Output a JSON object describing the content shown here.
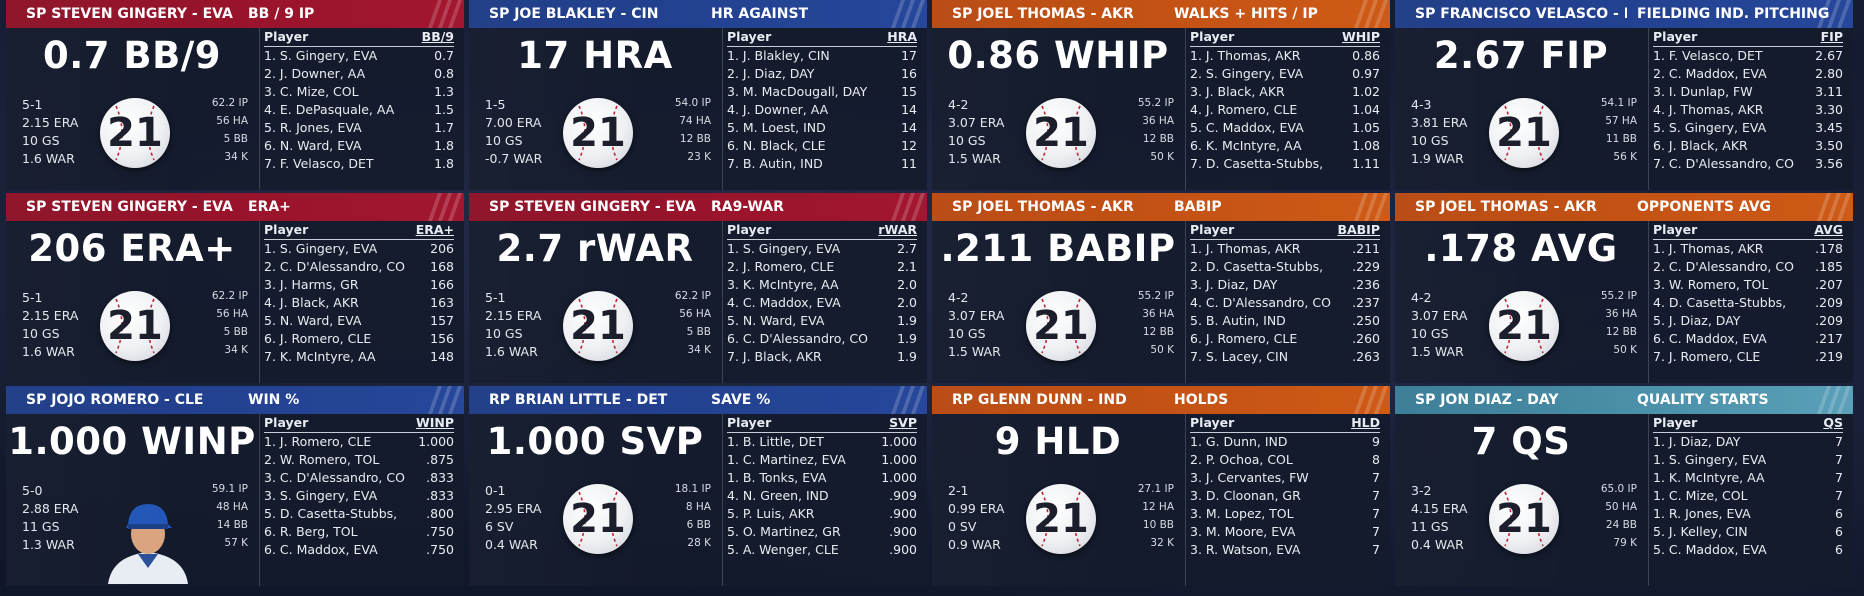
{
  "colors": {
    "red": "#a3162f",
    "blue": "#26479b",
    "orange": "#cf5a17",
    "teal": "#5aa0b9"
  },
  "team_logo_icon": "baseball-21-logo",
  "cards": [
    {
      "color": "red",
      "pname": "SP STEVEN GINGERY - EVA",
      "stitle": "BB / 9 IP",
      "big": "0.7 BB/9",
      "left": [
        "5-1",
        "2.15 ERA",
        "10 GS",
        "1.6 WAR"
      ],
      "right": [
        "62.2 IP",
        "56 HA",
        "5 BB",
        "34 K"
      ],
      "col": "BB/9",
      "rows": [
        [
          "1. S. Gingery, EVA",
          "0.7"
        ],
        [
          "2. J. Downer, AA",
          "0.8"
        ],
        [
          "3. C. Mize, COL",
          "1.3"
        ],
        [
          "4. E. DePasquale, AA",
          "1.5"
        ],
        [
          "5. R. Jones, EVA",
          "1.7"
        ],
        [
          "6. N. Ward, EVA",
          "1.8"
        ],
        [
          "7. F. Velasco, DET",
          "1.8"
        ]
      ]
    },
    {
      "color": "blue",
      "pname": "SP JOE BLAKLEY - CIN",
      "stitle": "HR AGAINST",
      "big": "17 HRA",
      "left": [
        "1-5",
        "7.00 ERA",
        "10 GS",
        "-0.7 WAR"
      ],
      "right": [
        "54.0 IP",
        "74 HA",
        "12 BB",
        "23 K"
      ],
      "col": "HRA",
      "rows": [
        [
          "1. J. Blakley, CIN",
          "17"
        ],
        [
          "2. J. Diaz, DAY",
          "16"
        ],
        [
          "3. M. MacDougall, DAY",
          "15"
        ],
        [
          "4. J. Downer, AA",
          "14"
        ],
        [
          "5. M. Loest, IND",
          "14"
        ],
        [
          "6. N. Black, CLE",
          "12"
        ],
        [
          "7. B. Autin, IND",
          "11"
        ]
      ]
    },
    {
      "color": "orange",
      "pname": "SP JOEL THOMAS - AKR",
      "stitle": "WALKS + HITS / IP",
      "big": "0.86 WHIP",
      "left": [
        "4-2",
        "3.07 ERA",
        "10 GS",
        "1.5 WAR"
      ],
      "right": [
        "55.2 IP",
        "36 HA",
        "12 BB",
        "50 K"
      ],
      "col": "WHIP",
      "rows": [
        [
          "1. J. Thomas, AKR",
          "0.86"
        ],
        [
          "2. S. Gingery, EVA",
          "0.97"
        ],
        [
          "3. J. Black, AKR",
          "1.02"
        ],
        [
          "4. J. Romero, CLE",
          "1.04"
        ],
        [
          "5. C. Maddox, EVA",
          "1.05"
        ],
        [
          "6. K. McIntyre, AA",
          "1.08"
        ],
        [
          "7. D. Casetta-Stubbs,",
          "1.11"
        ]
      ]
    },
    {
      "color": "blue",
      "pname": "SP FRANCISCO VELASCO - DET",
      "stitle": "FIELDING IND. PITCHING",
      "big": "2.67 FIP",
      "left": [
        "4-3",
        "3.81 ERA",
        "10 GS",
        "1.9 WAR"
      ],
      "right": [
        "54.1 IP",
        "57 HA",
        "11 BB",
        "56 K"
      ],
      "col": "FIP",
      "rows": [
        [
          "1. F. Velasco, DET",
          "2.67"
        ],
        [
          "2. C. Maddox, EVA",
          "2.80"
        ],
        [
          "3. I. Dunlap, FW",
          "3.11"
        ],
        [
          "4. J. Thomas, AKR",
          "3.30"
        ],
        [
          "5. S. Gingery, EVA",
          "3.45"
        ],
        [
          "6. J. Black, AKR",
          "3.50"
        ],
        [
          "7. C. D'Alessandro, CO",
          "3.56"
        ]
      ]
    },
    {
      "color": "red",
      "pname": "SP STEVEN GINGERY - EVA",
      "stitle": "ERA+",
      "big": "206 ERA+",
      "left": [
        "5-1",
        "2.15 ERA",
        "10 GS",
        "1.6 WAR"
      ],
      "right": [
        "62.2 IP",
        "56 HA",
        "5 BB",
        "34 K"
      ],
      "col": "ERA+",
      "rows": [
        [
          "1. S. Gingery, EVA",
          "206"
        ],
        [
          "2. C. D'Alessandro, CO",
          "168"
        ],
        [
          "3. J. Harms, GR",
          "166"
        ],
        [
          "4. J. Black, AKR",
          "163"
        ],
        [
          "5. N. Ward, EVA",
          "157"
        ],
        [
          "6. J. Romero, CLE",
          "156"
        ],
        [
          "7. K. McIntyre, AA",
          "148"
        ]
      ]
    },
    {
      "color": "red",
      "pname": "SP STEVEN GINGERY - EVA",
      "stitle": "RA9-WAR",
      "big": "2.7 rWAR",
      "left": [
        "5-1",
        "2.15 ERA",
        "10 GS",
        "1.6 WAR"
      ],
      "right": [
        "62.2 IP",
        "56 HA",
        "5 BB",
        "34 K"
      ],
      "col": "rWAR",
      "rows": [
        [
          "1. S. Gingery, EVA",
          "2.7"
        ],
        [
          "2. J. Romero, CLE",
          "2.1"
        ],
        [
          "3. K. McIntyre, AA",
          "2.0"
        ],
        [
          "4. C. Maddox, EVA",
          "2.0"
        ],
        [
          "5. N. Ward, EVA",
          "1.9"
        ],
        [
          "6. C. D'Alessandro, CO",
          "1.9"
        ],
        [
          "7. J. Black, AKR",
          "1.9"
        ]
      ]
    },
    {
      "color": "orange",
      "pname": "SP JOEL THOMAS - AKR",
      "stitle": "BABIP",
      "big": ".211 BABIP",
      "left": [
        "4-2",
        "3.07 ERA",
        "10 GS",
        "1.5 WAR"
      ],
      "right": [
        "55.2 IP",
        "36 HA",
        "12 BB",
        "50 K"
      ],
      "col": "BABIP",
      "rows": [
        [
          "1. J. Thomas, AKR",
          ".211"
        ],
        [
          "2. D. Casetta-Stubbs,",
          ".229"
        ],
        [
          "3. J. Diaz, DAY",
          ".236"
        ],
        [
          "4. C. D'Alessandro, CO",
          ".237"
        ],
        [
          "5. B. Autin, IND",
          ".250"
        ],
        [
          "6. J. Romero, CLE",
          ".260"
        ],
        [
          "7. S. Lacey, CIN",
          ".263"
        ]
      ]
    },
    {
      "color": "orange",
      "pname": "SP JOEL THOMAS - AKR",
      "stitle": "OPPONENTS AVG",
      "big": ".178 AVG",
      "left": [
        "4-2",
        "3.07 ERA",
        "10 GS",
        "1.5 WAR"
      ],
      "right": [
        "55.2 IP",
        "36 HA",
        "12 BB",
        "50 K"
      ],
      "col": "AVG",
      "rows": [
        [
          "1. J. Thomas, AKR",
          ".178"
        ],
        [
          "2. C. D'Alessandro, CO",
          ".185"
        ],
        [
          "3. W. Romero, TOL",
          ".207"
        ],
        [
          "4. D. Casetta-Stubbs,",
          ".209"
        ],
        [
          "5. J. Diaz, DAY",
          ".209"
        ],
        [
          "6. C. Maddox, EVA",
          ".217"
        ],
        [
          "7. J. Romero, CLE",
          ".219"
        ]
      ]
    },
    {
      "color": "blue",
      "pname": "SP JOJO ROMERO - CLE",
      "stitle": "WIN %",
      "big": "1.000 WINP",
      "face": true,
      "left": [
        "5-0",
        "2.88 ERA",
        "11 GS",
        "1.3 WAR"
      ],
      "right": [
        "59.1 IP",
        "48 HA",
        "14 BB",
        "57 K"
      ],
      "col": "WINP",
      "rows": [
        [
          "1. J. Romero, CLE",
          "1.000"
        ],
        [
          "2. W. Romero, TOL",
          ".875"
        ],
        [
          "3. C. D'Alessandro, CO",
          ".833"
        ],
        [
          "3. S. Gingery, EVA",
          ".833"
        ],
        [
          "5. D. Casetta-Stubbs,",
          ".800"
        ],
        [
          "6. R. Berg, TOL",
          ".750"
        ],
        [
          "6. C. Maddox, EVA",
          ".750"
        ]
      ]
    },
    {
      "color": "blue",
      "pname": "RP BRIAN LITTLE - DET",
      "stitle": "SAVE %",
      "big": "1.000 SVP",
      "left": [
        "0-1",
        "2.95 ERA",
        "6 SV",
        "0.4 WAR"
      ],
      "right": [
        "18.1 IP",
        "8 HA",
        "6 BB",
        "28 K"
      ],
      "col": "SVP",
      "rows": [
        [
          "1. B. Little, DET",
          "1.000"
        ],
        [
          "1. C. Martinez, EVA",
          "1.000"
        ],
        [
          "1. B. Tonks, EVA",
          "1.000"
        ],
        [
          "4. N. Green, IND",
          ".909"
        ],
        [
          "5. P. Luis, AKR",
          ".900"
        ],
        [
          "5. O. Martinez, GR",
          ".900"
        ],
        [
          "5. A. Wenger, CLE",
          ".900"
        ]
      ]
    },
    {
      "color": "orange",
      "pname": "RP GLENN DUNN - IND",
      "stitle": "HOLDS",
      "big": "9 HLD",
      "left": [
        "2-1",
        "0.99 ERA",
        "0 SV",
        "0.9 WAR"
      ],
      "right": [
        "27.1 IP",
        "12 HA",
        "10 BB",
        "32 K"
      ],
      "col": "HLD",
      "rows": [
        [
          "1. G. Dunn, IND",
          "9"
        ],
        [
          "2. P. Ochoa, COL",
          "8"
        ],
        [
          "3. J. Cervantes, FW",
          "7"
        ],
        [
          "3. D. Cloonan, GR",
          "7"
        ],
        [
          "3. M. Lopez, TOL",
          "7"
        ],
        [
          "3. M. Moore, EVA",
          "7"
        ],
        [
          "3. R. Watson, EVA",
          "7"
        ]
      ]
    },
    {
      "color": "teal",
      "pname": "SP JON DIAZ - DAY",
      "stitle": "QUALITY STARTS",
      "big": "7 QS",
      "left": [
        "3-2",
        "4.15 ERA",
        "11 GS",
        "0.4 WAR"
      ],
      "right": [
        "65.0 IP",
        "50 HA",
        "24 BB",
        "79 K"
      ],
      "col": "QS",
      "rows": [
        [
          "1. J. Diaz, DAY",
          "7"
        ],
        [
          "1. S. Gingery, EVA",
          "7"
        ],
        [
          "1. K. McIntyre, AA",
          "7"
        ],
        [
          "1. C. Mize, COL",
          "7"
        ],
        [
          "1. R. Jones, EVA",
          "6"
        ],
        [
          "5. J. Kelley, CIN",
          "6"
        ],
        [
          "5. C. Maddox, EVA",
          "6"
        ]
      ]
    }
  ]
}
